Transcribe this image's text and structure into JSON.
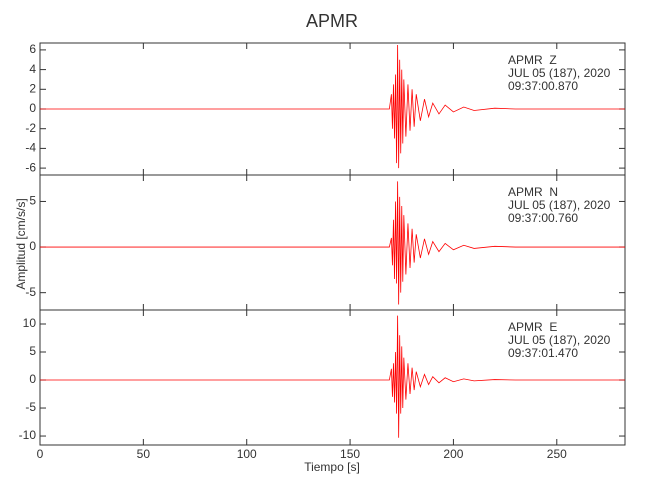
{
  "chart_data": [
    {
      "type": "line",
      "title": "APMR",
      "annotations": [
        "APMR  Z",
        "JUL 05 (187), 2020",
        "09:37:00.870"
      ],
      "xlim": [
        0,
        283
      ],
      "ylim": [
        -6.7,
        6.7
      ],
      "yticks": [
        -6,
        -4,
        -2,
        0,
        2,
        4,
        6
      ],
      "series": [
        {
          "color": "#ff0000",
          "x": [
            0,
            169,
            170,
            170.5,
            171,
            171.5,
            172,
            172.5,
            173,
            173.5,
            174,
            174.5,
            175,
            175.5,
            176,
            177,
            178,
            179,
            180,
            181,
            182,
            184,
            186,
            188,
            190,
            193,
            196,
            200,
            205,
            210,
            220,
            230,
            283
          ],
          "values": [
            0,
            0,
            1.5,
            -2,
            2.5,
            -3,
            3.5,
            -5.5,
            6.5,
            -6,
            5,
            -4.5,
            4,
            -3.5,
            3,
            -2.8,
            2.5,
            -2.2,
            2,
            -1.8,
            1.5,
            -1.2,
            1,
            -0.8,
            0.6,
            -0.5,
            0.4,
            -0.3,
            0.2,
            -0.15,
            0.08,
            0,
            0
          ]
        }
      ]
    },
    {
      "type": "line",
      "ylabel": "Amplitud [cm/s/s]",
      "annotations": [
        "APMR  N",
        "JUL 05 (187), 2020",
        "09:37:00.760"
      ],
      "xlim": [
        0,
        283
      ],
      "ylim": [
        -6.9,
        7.9
      ],
      "yticks": [
        -5,
        0,
        5
      ],
      "series": [
        {
          "color": "#ff0000",
          "x": [
            0,
            169,
            170,
            170.5,
            171,
            171.5,
            172,
            172.5,
            173,
            173.5,
            174,
            174.5,
            175,
            175.5,
            176,
            177,
            178,
            179,
            180,
            181,
            182,
            184,
            186,
            188,
            190,
            193,
            196,
            200,
            205,
            210,
            220,
            230,
            283
          ],
          "values": [
            0,
            0,
            1,
            -2,
            3,
            -3.5,
            5,
            -4,
            7.2,
            -6.3,
            5.5,
            -5,
            4.5,
            -3.8,
            3.5,
            -3,
            2.6,
            -2.3,
            2,
            -1.7,
            1.4,
            -1.2,
            0.9,
            -0.8,
            0.6,
            -0.5,
            0.4,
            -0.3,
            0.2,
            -0.15,
            0.08,
            0,
            0
          ]
        }
      ]
    },
    {
      "type": "line",
      "xlabel": "Tiempo [s]",
      "annotations": [
        "APMR  E",
        "JUL 05 (187), 2020",
        "09:37:01.470"
      ],
      "xlim": [
        0,
        283
      ],
      "ylim": [
        -11.6,
        12.5
      ],
      "yticks": [
        -10,
        -5,
        0,
        5,
        10
      ],
      "xticks": [
        0,
        50,
        100,
        150,
        200,
        250
      ],
      "series": [
        {
          "color": "#ff0000",
          "x": [
            0,
            169,
            170,
            170.5,
            171,
            171.5,
            172,
            172.5,
            173,
            173.5,
            174,
            174.5,
            175,
            175.5,
            176,
            177,
            178,
            179,
            180,
            181,
            182,
            184,
            186,
            188,
            190,
            193,
            196,
            200,
            205,
            210,
            220,
            230,
            283
          ],
          "values": [
            0,
            0,
            2,
            -3,
            3,
            -4,
            5,
            -6,
            11.5,
            -10.3,
            8,
            -6,
            6,
            -5,
            4,
            -3.5,
            3,
            -2.5,
            2.2,
            -1.8,
            1.5,
            -1.2,
            1,
            -0.8,
            0.6,
            -0.5,
            0.4,
            -0.3,
            0.2,
            -0.15,
            0.08,
            0,
            0
          ]
        }
      ]
    }
  ]
}
